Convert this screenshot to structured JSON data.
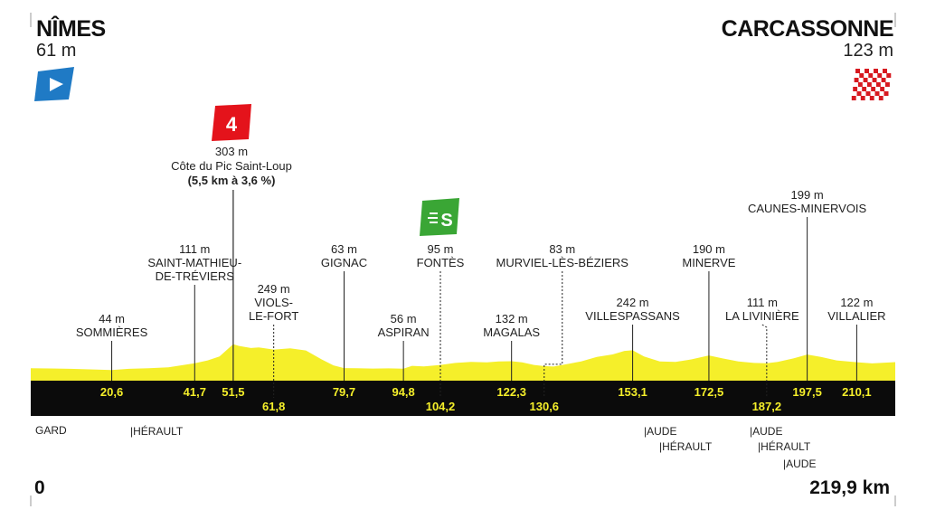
{
  "start": {
    "name": "NÎMES",
    "altitude": "61 m"
  },
  "finish": {
    "name": "CARCASSONNE",
    "altitude": "123 m"
  },
  "climb": {
    "category": "4",
    "altitude": "303 m",
    "name": "Côte du Pic Saint-Loup",
    "detail": "(5,5 km à 3,6 %)"
  },
  "sprint": {
    "letter": "S"
  },
  "chart_data": {
    "type": "area",
    "xlim": [
      0,
      219.9
    ],
    "x_unit": "km",
    "profile": [
      [
        0,
        61
      ],
      [
        5,
        59
      ],
      [
        10,
        55
      ],
      [
        15,
        50
      ],
      [
        20.6,
        44
      ],
      [
        25,
        55
      ],
      [
        30,
        62
      ],
      [
        35,
        70
      ],
      [
        41.7,
        111
      ],
      [
        45,
        140
      ],
      [
        48,
        180
      ],
      [
        51.5,
        303
      ],
      [
        53,
        285
      ],
      [
        56,
        265
      ],
      [
        58,
        270
      ],
      [
        61.8,
        249
      ],
      [
        63,
        252
      ],
      [
        66,
        262
      ],
      [
        70,
        240
      ],
      [
        74,
        150
      ],
      [
        77,
        90
      ],
      [
        79.7,
        63
      ],
      [
        83,
        62
      ],
      [
        87,
        58
      ],
      [
        91,
        60
      ],
      [
        94.8,
        56
      ],
      [
        97,
        85
      ],
      [
        100,
        80
      ],
      [
        104.2,
        95
      ],
      [
        108,
        115
      ],
      [
        112,
        125
      ],
      [
        116,
        120
      ],
      [
        119,
        130
      ],
      [
        122.3,
        132
      ],
      [
        125,
        120
      ],
      [
        128,
        95
      ],
      [
        130.6,
        83
      ],
      [
        133,
        78
      ],
      [
        136,
        100
      ],
      [
        140,
        130
      ],
      [
        144,
        175
      ],
      [
        148,
        200
      ],
      [
        151,
        235
      ],
      [
        153.1,
        242
      ],
      [
        156,
        180
      ],
      [
        160,
        130
      ],
      [
        164,
        125
      ],
      [
        168,
        150
      ],
      [
        172.5,
        190
      ],
      [
        176,
        160
      ],
      [
        180,
        130
      ],
      [
        184,
        115
      ],
      [
        187.2,
        111
      ],
      [
        190,
        125
      ],
      [
        194,
        160
      ],
      [
        197.5,
        199
      ],
      [
        201,
        175
      ],
      [
        205,
        140
      ],
      [
        210.1,
        122
      ],
      [
        214,
        110
      ],
      [
        219.9,
        123
      ]
    ],
    "points": [
      {
        "km": "20,6",
        "kv": 20.6,
        "alt": "44 m",
        "name": [
          "SOMMIÈRES"
        ],
        "row": 1
      },
      {
        "km": "41,7",
        "kv": 41.7,
        "alt": "111 m",
        "name": [
          "SAINT-MATHIEU-",
          "DE-TRÉVIERS"
        ],
        "row": 1
      },
      {
        "km": "51,5",
        "kv": 51.5,
        "alt": "",
        "name": [],
        "row": 1
      },
      {
        "km": "61,8",
        "kv": 61.8,
        "alt": "249 m",
        "name": [
          "VIOLS-",
          "LE-FORT"
        ],
        "row": 2
      },
      {
        "km": "79,7",
        "kv": 79.7,
        "alt": "63 m",
        "name": [
          "GIGNAC"
        ],
        "row": 1
      },
      {
        "km": "94,8",
        "kv": 94.8,
        "alt": "56 m",
        "name": [
          "ASPIRAN"
        ],
        "row": 1
      },
      {
        "km": "104,2",
        "kv": 104.2,
        "alt": "95 m",
        "name": [
          "FONTÈS"
        ],
        "row": 2
      },
      {
        "km": "122,3",
        "kv": 122.3,
        "alt": "132 m",
        "name": [
          "MAGALAS"
        ],
        "row": 1
      },
      {
        "km": "130,6",
        "kv": 130.6,
        "alt": "83 m",
        "name": [
          "MURVIEL-LÈS-BÉZIERS"
        ],
        "row": 2
      },
      {
        "km": "153,1",
        "kv": 153.1,
        "alt": "242 m",
        "name": [
          "VILLESPASSANS"
        ],
        "row": 1
      },
      {
        "km": "172,5",
        "kv": 172.5,
        "alt": "190 m",
        "name": [
          "MINERVE"
        ],
        "row": 1
      },
      {
        "km": "187,2",
        "kv": 187.2,
        "alt": "111 m",
        "name": [
          "LA LIVINIÈRE"
        ],
        "row": 2
      },
      {
        "km": "197,5",
        "kv": 197.5,
        "alt": "199 m",
        "name": [
          "CAUNES-MINERVOIS"
        ],
        "row": 1
      },
      {
        "km": "210,1",
        "kv": 210.1,
        "alt": "122 m",
        "name": [
          "VILLALIER"
        ],
        "row": 1
      }
    ],
    "km_start": "0",
    "km_end": "219,9 km"
  },
  "departments": [
    "GARD",
    "|HÉRAULT",
    "|AUDE",
    "|HÉRAULT",
    "|AUDE",
    "|HÉRAULT",
    "|AUDE"
  ],
  "colors": {
    "profile": "#f5ef2a",
    "band": "#0b0b0b",
    "km_text": "#f5ef2a",
    "climb_badge": "#e4131b",
    "sprint_badge": "#3aa635",
    "start_flag": "#1f7ac5",
    "finish_flag": "#d71920"
  }
}
